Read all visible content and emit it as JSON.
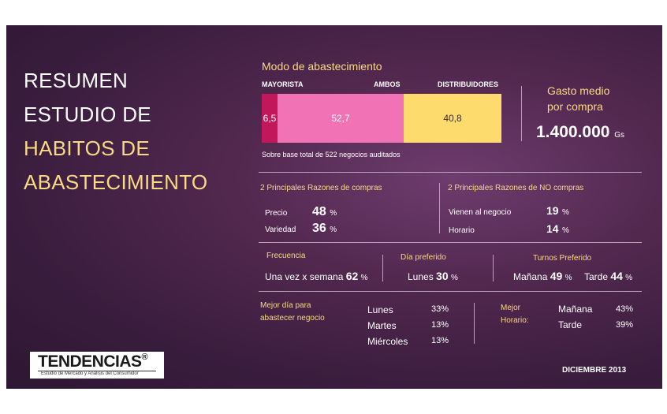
{
  "title": {
    "line1": "RESUMEN",
    "line2": "ESTUDIO DE",
    "line3": "HABITOS DE",
    "line4": "ABASTECIMIENTO"
  },
  "modo": {
    "heading": "Modo de abastecimiento",
    "labels": {
      "mayorista": "MAYORISTA",
      "ambos": "AMBOS",
      "distribuidores": "DISTRIBUIDORES"
    },
    "values": {
      "mayorista": "6,5",
      "ambos": "52,7",
      "distribuidores": "40,8"
    },
    "shares": {
      "mayorista": 6.5,
      "ambos": 52.7,
      "distribuidores": 40.8
    },
    "colors": {
      "mayorista": "#c2185b",
      "ambos": "#f272b6",
      "distribuidores": "#fddb6d"
    },
    "base_note": "Sobre base total de 522 negocios auditados"
  },
  "gasto": {
    "label_line1": "Gasto medio",
    "label_line2": "por compra",
    "value": "1.400.000",
    "unit": "Gs"
  },
  "razones_compra": {
    "heading": "2 Principales Razones de compras",
    "items": [
      {
        "label": "Precio",
        "value": "48",
        "unit": "%"
      },
      {
        "label": "Variedad",
        "value": "36",
        "unit": "%"
      }
    ]
  },
  "razones_no_compra": {
    "heading": "2 Principales  Razones de NO compras",
    "items": [
      {
        "label": "Vienen al negocio",
        "value": "19",
        "unit": "%"
      },
      {
        "label": "Horario",
        "value": "14",
        "unit": "%"
      }
    ]
  },
  "frecuencia": {
    "heading": "Frecuencia",
    "label": "Una vez x semana",
    "value": "62",
    "unit": "%"
  },
  "dia_preferido": {
    "heading": "Día preferido",
    "label": "Lunes",
    "value": "30",
    "unit": "%"
  },
  "turnos": {
    "heading": "Turnos Preferido",
    "items": [
      {
        "label": "Mañana",
        "value": "49",
        "unit": "%"
      },
      {
        "label": "Tarde",
        "value": "44",
        "unit": "%"
      }
    ]
  },
  "mejor_dia": {
    "heading_line1": "Mejor día para",
    "heading_line2": "abastecer negocio",
    "items": [
      {
        "label": "Lunes",
        "value": "33%"
      },
      {
        "label": "Martes",
        "value": "13%"
      },
      {
        "label": "Miércoles",
        "value": "13%"
      }
    ]
  },
  "mejor_horario": {
    "heading_line1": "Mejor",
    "heading_line2": "Horario:",
    "items": [
      {
        "label": "Mañana",
        "value": "43%"
      },
      {
        "label": "Tarde",
        "value": "39%"
      }
    ]
  },
  "logo": {
    "name": "TENDENCIAS",
    "mark": "®",
    "tagline": "Estudio de Mercado y Análisis del Consumidor"
  },
  "date": "DICIEMBRE 2013"
}
